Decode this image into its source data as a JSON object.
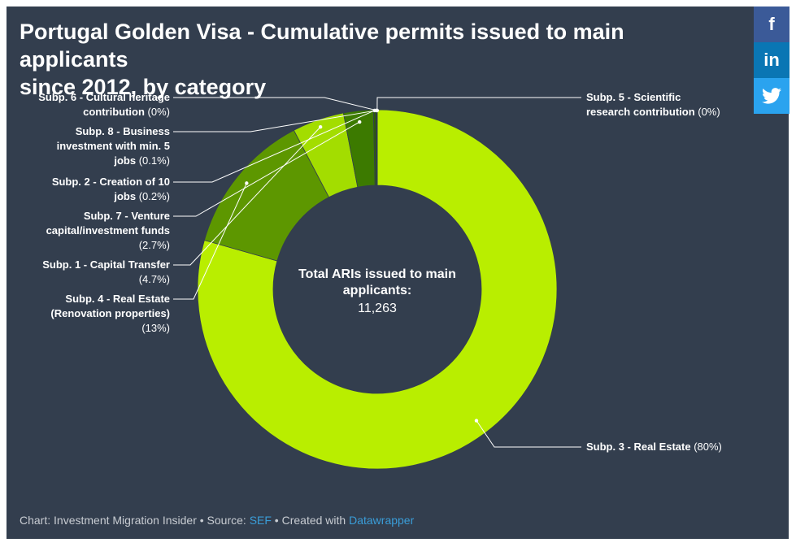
{
  "title_line1": "Portugal Golden Visa - Cumulative permits issued to main applicants",
  "title_line2": "since 2012, by category",
  "social": {
    "facebook": "f",
    "linkedin": "in",
    "twitter_icon": "twitter-bird-icon"
  },
  "footer": {
    "prefix": "Chart: Investment Migration Insider • Source: ",
    "source_link": "SEF",
    "middle": " • Created with ",
    "tool_link": "Datawrapper"
  },
  "chart_data": {
    "type": "pie",
    "style": "donut",
    "center_label_line1": "Total ARIs issued to main",
    "center_label_line2": "applicants:",
    "center_value": "11,263",
    "slices": [
      {
        "name_lines": [
          "Subp. 3 - Real Estate"
        ],
        "pct_label": "(80%)",
        "value": 80,
        "color": "#b9ee00"
      },
      {
        "name_lines": [
          "Subp. 4 - Real Estate",
          "(Renovation properties)"
        ],
        "pct_label": "(13%)",
        "value": 13,
        "color": "#5d9700"
      },
      {
        "name_lines": [
          "Subp. 1 - Capital Transfer"
        ],
        "pct_label": "(4.7%)",
        "value": 4.7,
        "color": "#a3dd00"
      },
      {
        "name_lines": [
          "Subp. 7 - Venture",
          "capital/investment funds"
        ],
        "pct_label": "(2.7%)",
        "value": 2.7,
        "color": "#3c7a00"
      },
      {
        "name_lines": [
          "Subp. 2 - Creation of 10"
        ],
        "name_tail": "jobs",
        "pct_label": "(0.2%)",
        "value": 0.2,
        "color": "#2d6200"
      },
      {
        "name_lines": [
          "Subp. 8 - Business",
          "investment with min. 5"
        ],
        "name_tail": "jobs",
        "pct_label": "(0.1%)",
        "value": 0.1,
        "color": "#204a00"
      },
      {
        "name_lines": [
          "Subp. 6 - Cultural heritage"
        ],
        "name_tail": "contribution",
        "pct_label": "(0%)",
        "value": 0.02,
        "color": "#1a3a00"
      },
      {
        "name_lines": [
          "Subp. 5 - Scientific"
        ],
        "name_tail": "research contribution",
        "pct_label": "(0%)",
        "value": 0.02,
        "color": "#164000"
      }
    ]
  }
}
